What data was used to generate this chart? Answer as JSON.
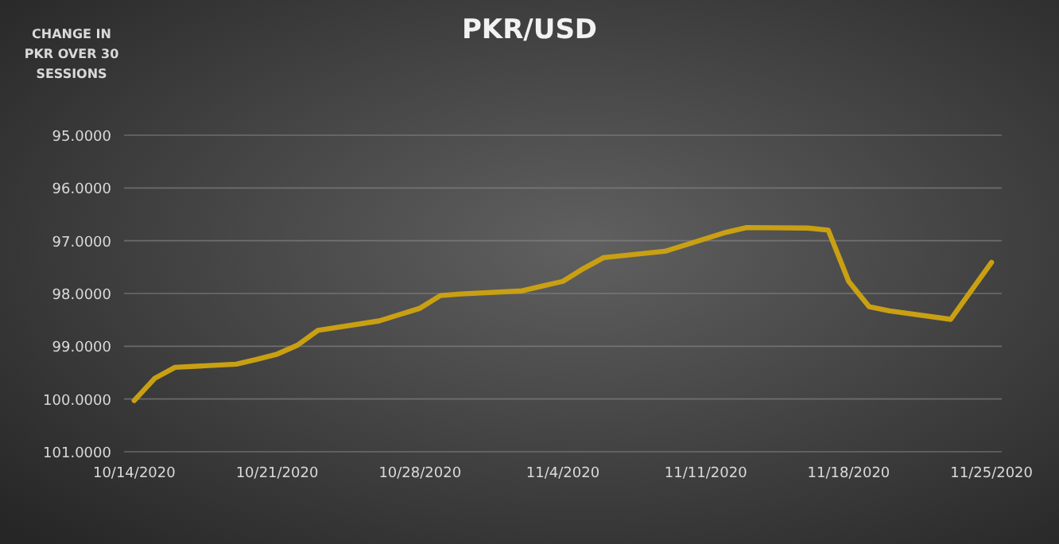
{
  "chart_data": {
    "type": "line",
    "title": "PKR/USD",
    "ylabel": "CHANGE IN PKR OVER 30 SESSIONS",
    "x": [
      "2020-10-14",
      "2020-10-15",
      "2020-10-16",
      "2020-10-19",
      "2020-10-20",
      "2020-10-21",
      "2020-10-22",
      "2020-10-23",
      "2020-10-26",
      "2020-10-27",
      "2020-10-28",
      "2020-10-29",
      "2020-10-30",
      "2020-11-02",
      "2020-11-03",
      "2020-11-04",
      "2020-11-05",
      "2020-11-06",
      "2020-11-09",
      "2020-11-10",
      "2020-11-11",
      "2020-11-12",
      "2020-11-13",
      "2020-11-16",
      "2020-11-17",
      "2020-11-18",
      "2020-11-19",
      "2020-11-20",
      "2020-11-23",
      "2020-11-24",
      "2020-11-25"
    ],
    "series": [
      {
        "color": "#c9a013",
        "values": [
          100.03,
          99.61,
          99.4,
          99.34,
          99.25,
          99.15,
          98.98,
          98.7,
          98.52,
          98.4,
          98.28,
          98.04,
          98.01,
          97.95,
          97.86,
          97.77,
          97.53,
          97.32,
          97.2,
          97.08,
          96.96,
          96.84,
          96.75,
          96.76,
          96.8,
          97.77,
          98.25,
          98.33,
          98.49,
          97.95,
          97.41
        ]
      }
    ],
    "xlim": [
      "2020-10-13T12:00",
      "2020-11-25T12:00"
    ],
    "xticks": [
      {
        "value": "2020-10-14",
        "label": "10/14/2020"
      },
      {
        "value": "2020-10-21",
        "label": "10/21/2020"
      },
      {
        "value": "2020-10-28",
        "label": "10/28/2020"
      },
      {
        "value": "2020-11-04",
        "label": "11/4/2020"
      },
      {
        "value": "2020-11-11",
        "label": "11/11/2020"
      },
      {
        "value": "2020-11-18",
        "label": "11/18/2020"
      },
      {
        "value": "2020-11-25",
        "label": "11/25/2020"
      }
    ],
    "ylim": [
      101,
      95
    ],
    "yticks": [
      {
        "value": 95,
        "label": "95.0000"
      },
      {
        "value": 96,
        "label": "96.0000"
      },
      {
        "value": 97,
        "label": "97.0000"
      },
      {
        "value": 98,
        "label": "98.0000"
      },
      {
        "value": 99,
        "label": "99.0000"
      },
      {
        "value": 100,
        "label": "100.0000"
      },
      {
        "value": 101,
        "label": "101.0000"
      }
    ],
    "grid": "y",
    "marker": "none",
    "line_style": "solid"
  }
}
